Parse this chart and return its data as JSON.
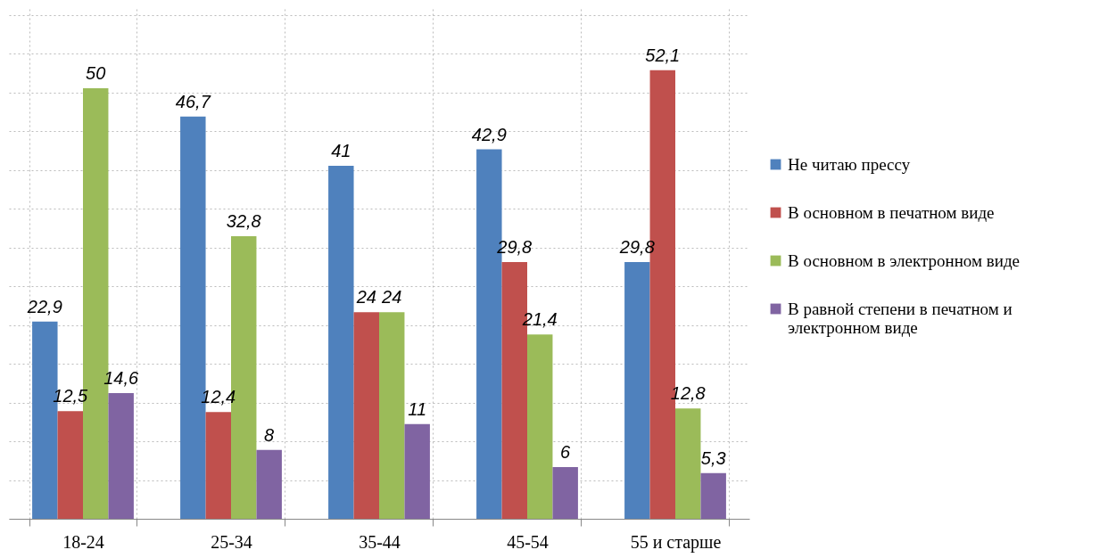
{
  "chart_data": {
    "type": "bar",
    "categories": [
      "18-24",
      "25-34",
      "35-44",
      "45-54",
      "55 и старше"
    ],
    "series": [
      {
        "name": "Не читаю прессу",
        "color": "#4f81bd",
        "values": [
          22.9,
          46.7,
          41,
          42.9,
          29.8
        ],
        "value_labels": [
          "22,9",
          "46,7",
          "41",
          "42,9",
          "29,8"
        ]
      },
      {
        "name": "В основном в печатном виде",
        "color": "#c0504d",
        "values": [
          12.5,
          12.4,
          24,
          29.8,
          52.1
        ],
        "value_labels": [
          "12,5",
          "12,4",
          "24",
          "29,8",
          "52,1"
        ]
      },
      {
        "name": "В основном в электронном виде",
        "color": "#9bbb59",
        "values": [
          50,
          32.8,
          24,
          21.4,
          12.8
        ],
        "value_labels": [
          "50",
          "32,8",
          "24",
          "21,4",
          "12,8"
        ]
      },
      {
        "name": "В равной степени в печатном и электронном виде",
        "color": "#8064a2",
        "values": [
          14.6,
          8,
          11,
          6,
          5.3
        ],
        "value_labels": [
          "14,6",
          "8",
          "11",
          "6",
          "5,3"
        ]
      }
    ],
    "legend": "right",
    "grid": true
  }
}
